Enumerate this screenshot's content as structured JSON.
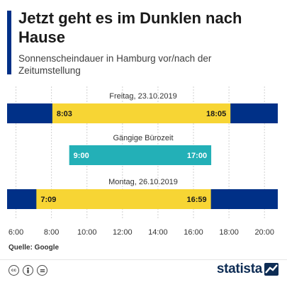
{
  "header": {
    "title": "Jetzt geht es im Dunklen nach Hause",
    "subtitle": "Sonnenscheindauer in Hamburg vor/nach der Zeitumstellung"
  },
  "colors": {
    "accent": "#003087",
    "dark": "#003087",
    "sun": "#f7d534",
    "office": "#23b0b7"
  },
  "chart_data": {
    "type": "bar",
    "orientation": "horizontal",
    "xlim": [
      5.5,
      20.75
    ],
    "xticks": [
      "6:00",
      "8:00",
      "10:00",
      "12:00",
      "14:00",
      "16:00",
      "18:00",
      "20:00"
    ],
    "xtick_values": [
      6,
      8,
      10,
      12,
      14,
      16,
      18,
      20
    ],
    "grid": true,
    "rows": [
      {
        "label": "Freitag, 23.10.2019",
        "style": "daylight",
        "start": 8.05,
        "end": 18.0833,
        "start_label": "8:03",
        "end_label": "18:05"
      },
      {
        "label": "Gängige Bürozeit",
        "style": "office",
        "start": 9.0,
        "end": 17.0,
        "start_label": "9:00",
        "end_label": "17:00"
      },
      {
        "label": "Montag, 26.10.2019",
        "style": "daylight",
        "start": 7.15,
        "end": 16.9833,
        "start_label": "7:09",
        "end_label": "16:59"
      }
    ]
  },
  "footer": {
    "source": "Quelle: Google",
    "brand": "statista",
    "license_icons": [
      "cc-icon",
      "person-icon",
      "equals-icon"
    ]
  }
}
